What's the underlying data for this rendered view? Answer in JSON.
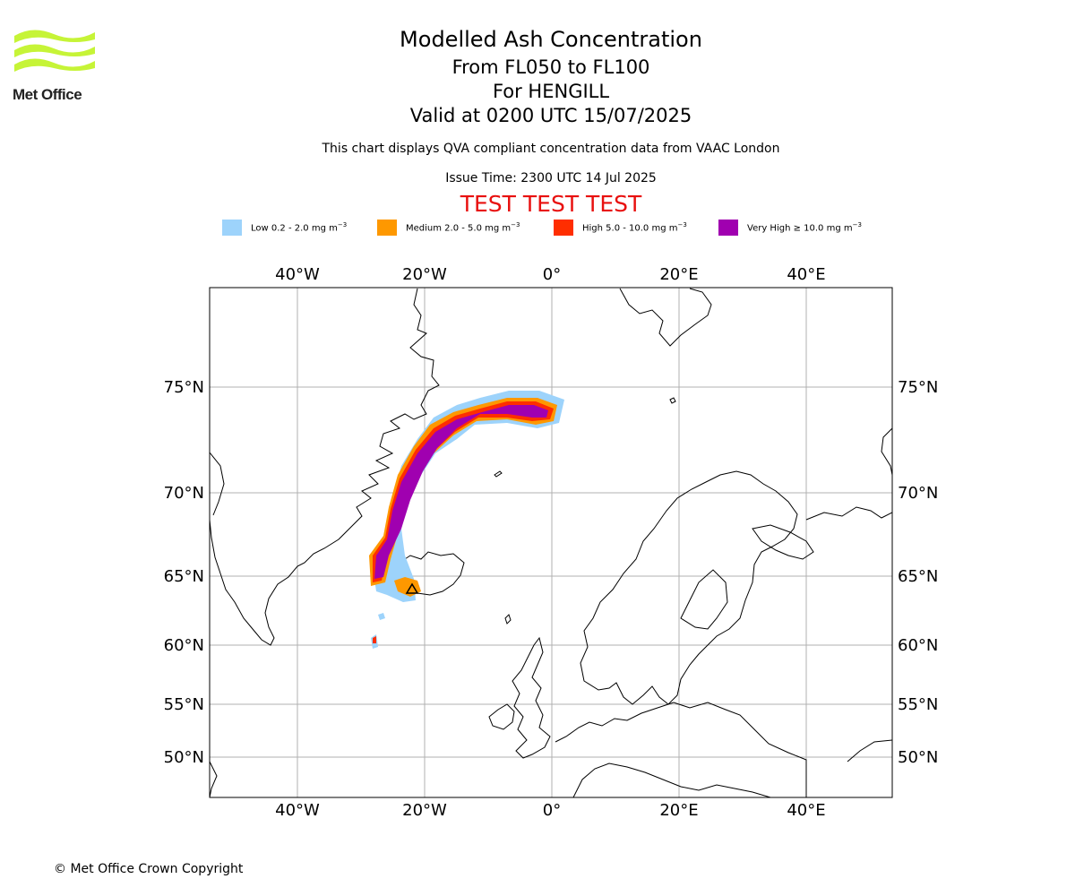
{
  "header": {
    "title": "Modelled Ash Concentration",
    "levels": "From FL050 to FL100",
    "volcano": "For HENGILL",
    "valid": "Valid at 0200 UTC 15/07/2025",
    "description": "This chart displays QVA compliant concentration data from VAAC London",
    "issue_time": "Issue Time: 2300 UTC 14 Jul 2025",
    "test_banner": "TEST TEST TEST"
  },
  "logo": {
    "text": "Met Office",
    "color": "#c6f437"
  },
  "legend": [
    {
      "label": "Low 0.2 - 2.0 mg m",
      "color": "#9dd3fb"
    },
    {
      "label": "Medium 2.0 - 5.0 mg m",
      "color": "#fe9800"
    },
    {
      "label": "High 5.0 - 10.0 mg m",
      "color": "#ff2e00"
    },
    {
      "label": "Very High ≥ 10.0 mg m",
      "color": "#a000b0"
    }
  ],
  "legend_unit_exp": "−3",
  "map": {
    "lon_ticks": [
      "40°W",
      "20°W",
      "0°",
      "20°E",
      "40°E"
    ],
    "lat_ticks": [
      "75°N",
      "70°N",
      "65°N",
      "60°N",
      "55°N",
      "50°N"
    ],
    "gridlines": true,
    "coastline_color": "#000000"
  },
  "footer": {
    "copyright": "© Met Office Crown Copyright"
  }
}
